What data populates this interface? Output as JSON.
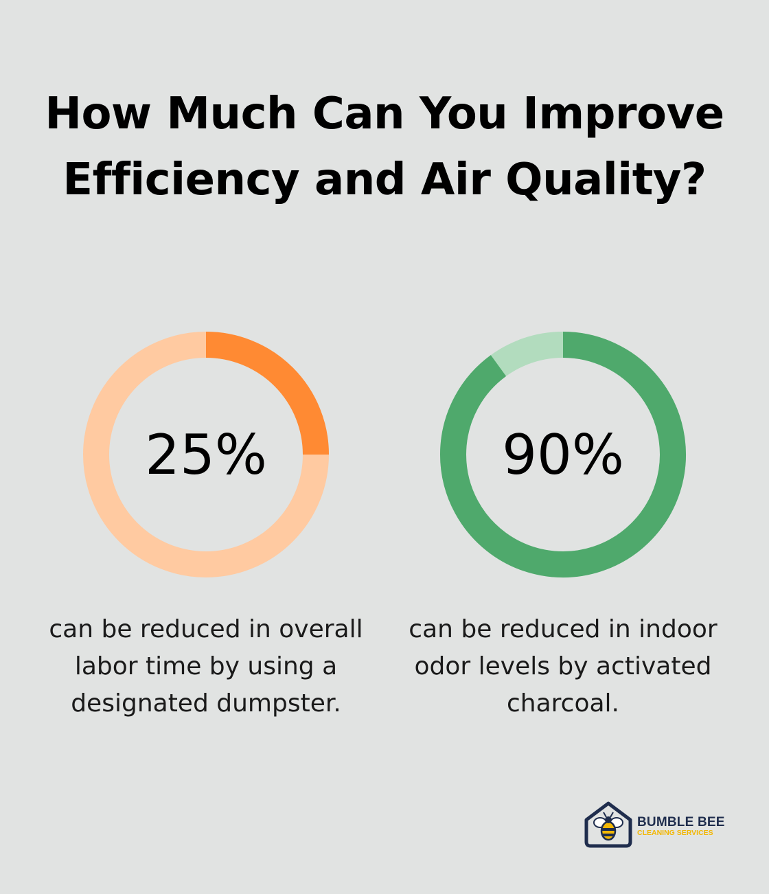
{
  "title": "How Much Can You Improve Efficiency and Air Quality?",
  "chart_data": [
    {
      "type": "pie",
      "variant": "donut",
      "value_percent": 25,
      "label": "25%",
      "caption": "can be reduced in overall labor time by using a designated dumpster.",
      "colors": {
        "filled": "#ff8a33",
        "remainder": "#ffcaa1"
      }
    },
    {
      "type": "pie",
      "variant": "donut",
      "value_percent": 90,
      "label": "90%",
      "caption": "can be reduced in indoor odor levels by activated charcoal.",
      "colors": {
        "filled": "#4fa96c",
        "remainder": "#b2dcbe"
      }
    }
  ],
  "logo": {
    "name_line1": "BUMBLE BEE",
    "name_line2": "CLEANING SERVICES",
    "icon": "bee-house-icon",
    "colors": {
      "primary": "#1f2d4d",
      "accent": "#f2b705"
    }
  }
}
